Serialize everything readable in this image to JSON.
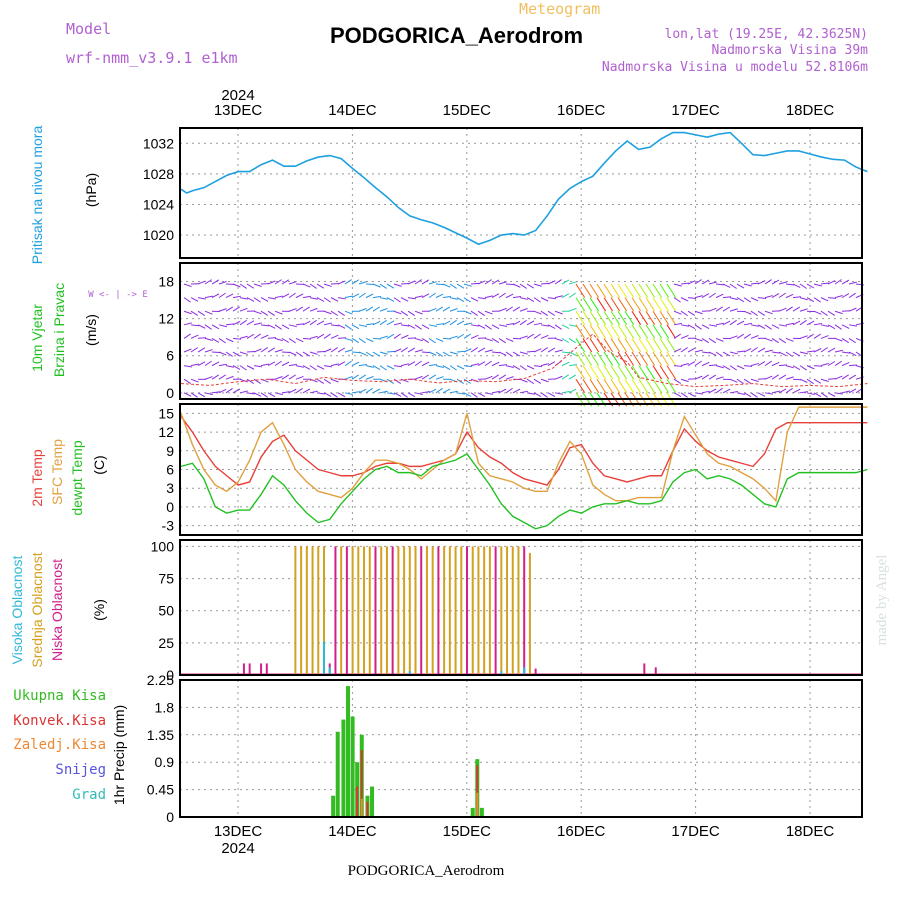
{
  "header": {
    "model_label": "Model",
    "model_name": "wrf-nmm_v3.9.1 e1km",
    "title": "PODGORICA_Aerodrom",
    "meteogram": "Meteogram",
    "coords": "lon,lat (19.25E, 42.3625N)",
    "elevation": "Nadmorska Visina 39m",
    "model_elevation": "Nadmorska Visina u modelu 52.8106m",
    "footer": "PODGORICA_Aerodrom",
    "credit": "made by Angel"
  },
  "colors": {
    "pressure": "#1ea0e0",
    "temp2m": "#e8403a",
    "sfc_temp": "#e0a040",
    "dewpt": "#22c022",
    "cloud_high": "#30b8d8",
    "cloud_mid": "#d4a020",
    "cloud_low": "#d0208a",
    "precip_total": "#33bb22",
    "precip_conv": "#dd3333",
    "precip_frozen": "#ee8833",
    "snow": "#5555dd",
    "hail": "#33bbbb",
    "title_purple": "#b060d0"
  },
  "time_axis": {
    "year": "2024",
    "days": [
      "13DEC",
      "14DEC",
      "15DEC",
      "16DEC",
      "17DEC",
      "18DEC"
    ]
  },
  "panels": {
    "pressure": {
      "label1": "Pritisak na nivou mora",
      "unit": "(hPa)"
    },
    "wind": {
      "label1": "10m Vjetar",
      "label2": "Brzina i Pravac",
      "unit": "(m/s)",
      "compass": "W <- | -> E"
    },
    "temp": {
      "label1": "2m Temp",
      "label2": "SFC Temp",
      "label3": "dewpt Temp",
      "unit": "(C)"
    },
    "cloud": {
      "label1": "Visoka Oblacnost",
      "label2": "Srednja Oblacnost",
      "label3": "Niska Oblacnost",
      "unit": "(%)"
    },
    "precip": {
      "unit": "1hr Precip (mm)",
      "legend": [
        "Ukupna Kisa",
        "Konvek.Kisa",
        "Zaledj.Kisa",
        "Snijeg",
        "Grad"
      ]
    }
  },
  "chart_data": [
    {
      "type": "line",
      "title": "Pritisak na nivou mora",
      "ylabel": "(hPa)",
      "ylim": [
        1017,
        1034
      ],
      "yticks": [
        1020,
        1024,
        1028,
        1032
      ],
      "x": [
        0,
        0.05,
        0.1,
        0.2,
        0.3,
        0.4,
        0.5,
        0.6,
        0.7,
        0.8,
        0.9,
        1.0,
        1.1,
        1.2,
        1.3,
        1.4,
        1.5,
        1.6,
        1.7,
        1.8,
        1.9,
        2.0,
        2.1,
        2.2,
        2.3,
        2.4,
        2.5,
        2.6,
        2.7,
        2.8,
        2.9,
        3.0,
        3.1,
        3.2,
        3.3,
        3.4,
        3.5,
        3.6,
        3.7,
        3.8,
        3.9,
        4.0,
        4.1,
        4.2,
        4.3,
        4.4,
        4.5,
        4.6,
        4.7,
        4.8,
        4.9,
        5.0,
        5.1,
        5.2,
        5.3,
        5.4,
        5.5,
        5.6,
        5.7,
        5.8,
        5.9,
        6.0
      ],
      "series": [
        {
          "values": [
            1026.0,
            1025.5,
            1025.8,
            1026.2,
            1027.0,
            1027.8,
            1028.3,
            1028.3,
            1029.2,
            1029.8,
            1029.0,
            1029.0,
            1029.7,
            1030.2,
            1030.4,
            1030.0,
            1028.7,
            1027.5,
            1026.2,
            1025.0,
            1023.6,
            1022.5,
            1022.0,
            1021.6,
            1021.0,
            1020.3,
            1019.6,
            1018.8,
            1019.3,
            1020.0,
            1020.2,
            1020.0,
            1020.6,
            1022.5,
            1024.7,
            1026.1,
            1027.0,
            1027.7,
            1029.4,
            1031.0,
            1032.3,
            1031.2,
            1031.5,
            1032.6,
            1033.4,
            1033.4,
            1033.1,
            1032.8,
            1033.2,
            1033.4,
            1032.0,
            1030.5,
            1030.4,
            1030.7,
            1031.0,
            1031.0,
            1030.6,
            1030.2,
            1029.9,
            1029.8,
            1028.9,
            1028.3
          ]
        }
      ]
    },
    {
      "type": "line",
      "title": "10m Vjetar Brzina i Pravac",
      "ylabel": "(m/s)",
      "ylim": [
        -1,
        21
      ],
      "yticks": [
        0,
        6,
        12,
        18
      ],
      "x": [
        0,
        0.25,
        0.5,
        0.75,
        1.0,
        1.25,
        1.5,
        1.75,
        2.0,
        2.25,
        2.5,
        2.75,
        3.0,
        3.25,
        3.5,
        3.6,
        3.75,
        3.9,
        4.0,
        4.25,
        4.5,
        4.75,
        5.0,
        5.25,
        5.5,
        5.75,
        6.0
      ],
      "series": [
        {
          "name": "wind speed",
          "values": [
            1.5,
            1.2,
            1.8,
            2.2,
            1.5,
            2.5,
            2.0,
            1.8,
            2.2,
            1.6,
            2.0,
            1.8,
            2.3,
            4.0,
            8.0,
            9.5,
            6.5,
            5.0,
            2.5,
            1.5,
            1.0,
            1.2,
            1.5,
            1.0,
            1.2,
            1.0,
            1.5
          ]
        }
      ]
    },
    {
      "type": "line",
      "title": "2m Temp / SFC Temp / dewpt Temp",
      "ylabel": "(C)",
      "ylim": [
        -4.5,
        16.5
      ],
      "yticks": [
        -3,
        0,
        3,
        6,
        9,
        12,
        15
      ],
      "x": [
        0,
        0.1,
        0.2,
        0.3,
        0.4,
        0.5,
        0.6,
        0.7,
        0.8,
        0.9,
        1.0,
        1.1,
        1.2,
        1.3,
        1.4,
        1.5,
        1.6,
        1.7,
        1.8,
        1.9,
        2.0,
        2.1,
        2.2,
        2.3,
        2.4,
        2.5,
        2.6,
        2.7,
        2.8,
        2.9,
        3.0,
        3.1,
        3.2,
        3.3,
        3.4,
        3.5,
        3.6,
        3.7,
        3.8,
        3.9,
        4.0,
        4.1,
        4.2,
        4.3,
        4.4,
        4.5,
        4.6,
        4.7,
        4.8,
        4.9,
        5.0,
        5.1,
        5.2,
        5.3,
        5.4,
        5.5,
        5.6,
        5.7,
        5.8,
        5.9,
        6.0
      ],
      "series": [
        {
          "name": "2m Temp",
          "values": [
            14.5,
            12.0,
            9.0,
            6.5,
            5.0,
            3.5,
            4.0,
            8.0,
            10.5,
            11.5,
            9.0,
            7.5,
            6.0,
            5.5,
            5.0,
            5.0,
            5.5,
            6.5,
            7.0,
            7.0,
            6.5,
            6.5,
            7.0,
            7.5,
            8.5,
            12.0,
            9.5,
            8.0,
            7.0,
            5.5,
            4.5,
            4.0,
            3.5,
            6.0,
            9.5,
            10.0,
            7.0,
            5.0,
            4.5,
            4.0,
            4.5,
            5.0,
            5.0,
            9.0,
            12.5,
            10.5,
            9.0,
            8.0,
            7.5,
            7.0,
            6.5,
            8.5,
            12.5,
            13.5,
            13.5,
            13.5,
            13.5,
            13.5,
            13.5,
            13.5,
            13.5
          ]
        },
        {
          "name": "SFC Temp",
          "values": [
            15.0,
            10.0,
            6.0,
            3.5,
            2.5,
            4.0,
            7.5,
            12.0,
            13.5,
            10.0,
            6.0,
            4.0,
            2.5,
            2.0,
            1.5,
            3.0,
            5.5,
            7.5,
            7.5,
            7.0,
            6.0,
            4.5,
            6.0,
            7.5,
            8.5,
            15.0,
            7.0,
            5.0,
            4.5,
            4.0,
            3.0,
            2.5,
            2.5,
            7.0,
            10.5,
            8.5,
            3.5,
            2.0,
            1.0,
            1.0,
            1.5,
            1.5,
            1.5,
            9.0,
            14.5,
            11.5,
            8.5,
            7.0,
            6.5,
            5.5,
            4.5,
            3.0,
            1.0,
            12.0,
            16.0,
            16.0,
            16.0,
            16.0,
            16.0,
            16.0,
            16.0
          ]
        },
        {
          "name": "dewpt Temp",
          "values": [
            6.5,
            7.0,
            4.5,
            0.0,
            -1.0,
            -0.5,
            -0.5,
            2.0,
            5.0,
            3.5,
            1.0,
            -1.0,
            -2.5,
            -2.0,
            0.5,
            2.5,
            4.5,
            6.0,
            6.5,
            5.5,
            5.5,
            5.0,
            6.5,
            7.0,
            7.5,
            8.5,
            6.0,
            3.5,
            0.5,
            -1.5,
            -2.5,
            -3.5,
            -3.0,
            -1.5,
            -0.5,
            -1.0,
            0.0,
            0.5,
            0.5,
            1.0,
            0.5,
            0.5,
            1.0,
            4.0,
            5.5,
            6.0,
            4.5,
            5.0,
            4.5,
            3.5,
            2.0,
            0.5,
            0.0,
            4.5,
            5.5,
            5.5,
            5.5,
            5.5,
            5.5,
            5.5,
            6.0
          ]
        }
      ]
    },
    {
      "type": "bar",
      "title": "Visoka / Srednja / Niska Oblacnost",
      "ylabel": "(%)",
      "ylim": [
        0,
        105
      ],
      "yticks": [
        0,
        25,
        50,
        75,
        100
      ],
      "series": [
        {
          "name": "Srednja Oblacnost",
          "x": [
            1.0,
            1.05,
            1.1,
            1.15,
            1.2,
            1.25,
            1.4,
            1.5,
            1.55,
            1.6,
            1.65,
            1.75,
            1.8,
            1.9,
            1.95,
            2.0,
            2.05,
            2.15,
            2.2,
            2.3,
            2.35,
            2.4,
            2.45,
            2.55,
            2.6,
            2.65,
            2.7,
            2.8,
            2.85,
            2.9,
            2.95,
            3.05
          ],
          "values": [
            100,
            100,
            100,
            100,
            100,
            100,
            100,
            100,
            100,
            100,
            100,
            100,
            100,
            100,
            100,
            100,
            100,
            100,
            100,
            100,
            100,
            100,
            100,
            100,
            100,
            100,
            100,
            100,
            100,
            100,
            100,
            95
          ]
        },
        {
          "name": "Niska Oblacnost",
          "x": [
            0.55,
            0.6,
            0.7,
            0.75,
            1.3,
            1.35,
            1.45,
            1.7,
            1.85,
            2.1,
            2.25,
            2.5,
            2.75,
            3.0,
            3.1,
            4.05,
            4.15
          ],
          "values": [
            9,
            9,
            9,
            9,
            9,
            100,
            100,
            100,
            100,
            100,
            100,
            100,
            100,
            100,
            5,
            9,
            6
          ]
        },
        {
          "name": "Visoka Oblacnost",
          "x": [
            1.25,
            1.3,
            2.0,
            2.8,
            3.0
          ],
          "values": [
            26,
            6,
            3,
            3,
            6
          ]
        }
      ]
    },
    {
      "type": "bar",
      "title": "1hr Precip",
      "ylabel": "1hr Precip (mm)",
      "ylim": [
        0,
        2.25
      ],
      "yticks": [
        0,
        0.45,
        0.9,
        1.35,
        1.8,
        2.25
      ],
      "series": [
        {
          "name": "Ukupna Kisa",
          "x": [
            1.33,
            1.37,
            1.42,
            1.46,
            1.5,
            1.54,
            1.58,
            1.63,
            1.67,
            2.55,
            2.59,
            2.63
          ],
          "values": [
            0.35,
            1.4,
            1.6,
            2.15,
            1.65,
            0.9,
            1.35,
            0.35,
            0.5,
            0.15,
            0.95,
            0.15
          ]
        },
        {
          "name": "Konvek.Kisa",
          "x": [
            1.54,
            1.58,
            1.63,
            2.59
          ],
          "values": [
            0.5,
            1.1,
            0.25,
            0.85
          ]
        },
        {
          "name": "Zaledj.Kisa",
          "x": [
            1.58,
            2.59
          ],
          "values": [
            0.3,
            0.4
          ]
        }
      ]
    }
  ]
}
